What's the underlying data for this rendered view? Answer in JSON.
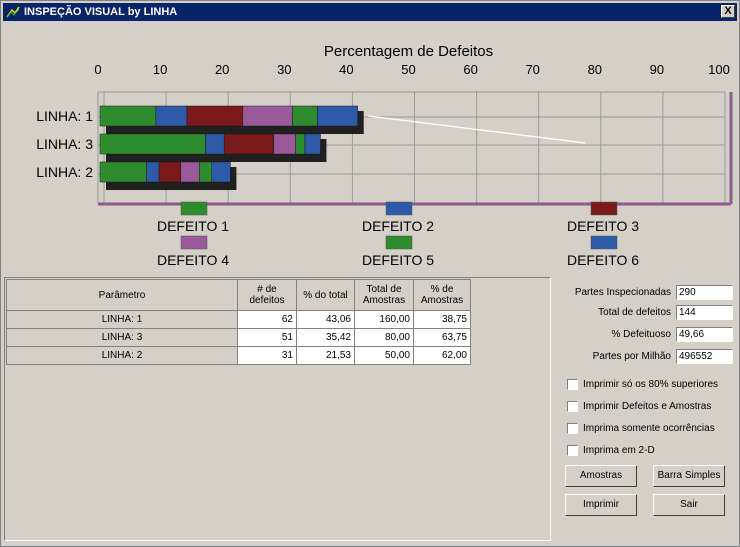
{
  "window": {
    "title": "INSPEÇÃO VISUAL by LINHA",
    "close_label": "X"
  },
  "chart_data": {
    "type": "bar",
    "orientation": "horizontal",
    "stacked": true,
    "title": "Percentagem de Defeitos",
    "xlim": [
      0,
      100
    ],
    "xticks": [
      0,
      10,
      20,
      30,
      40,
      50,
      60,
      70,
      80,
      90,
      100
    ],
    "categories": [
      "LINHA: 1",
      "LINHA: 3",
      "LINHA: 2"
    ],
    "series": [
      {
        "name": "DEFEITO 1",
        "color": "#2e8b2e",
        "values": [
          9,
          17,
          7.5
        ]
      },
      {
        "name": "DEFEITO 2",
        "color": "#2f5aa8",
        "values": [
          5,
          3,
          2
        ]
      },
      {
        "name": "DEFEITO 3",
        "color": "#7a1a1a",
        "values": [
          9,
          8,
          3.5
        ]
      },
      {
        "name": "DEFEITO 4",
        "color": "#9a5a9a",
        "values": [
          8,
          3.5,
          3
        ]
      },
      {
        "name": "DEFEITO 5",
        "color": "#2e8b2e",
        "values": [
          4,
          1.5,
          2
        ]
      },
      {
        "name": "DEFEITO 6",
        "color": "#2f5aa8",
        "values": [
          6.5,
          2.5,
          3
        ]
      }
    ],
    "grid": true,
    "legend_position": "bottom"
  },
  "table": {
    "headers": [
      "Parâmetro",
      "# de defeitos",
      "% do total",
      "Total de Amostras",
      "% de Amostras"
    ],
    "rows": [
      [
        "LINHA: 1",
        "62",
        "43,06",
        "160,00",
        "38,75"
      ],
      [
        "LINHA: 3",
        "51",
        "35,42",
        "80,00",
        "63,75"
      ],
      [
        "LINHA: 2",
        "31",
        "21,53",
        "50,00",
        "62,00"
      ]
    ]
  },
  "stats": {
    "partes_label": "Partes Inspecionadas",
    "partes_value": "290",
    "total_label": "Total de defeitos",
    "total_value": "144",
    "pct_label": "% Defeituoso",
    "pct_value": "49,66",
    "ppm_label": "Partes por Milhão",
    "ppm_value": "496552"
  },
  "options": {
    "opt1": "Imprimir só os 80% superiores",
    "opt2": "Imprimir Defeitos e Amostras",
    "opt3": "Imprima somente ocorrências",
    "opt4": "Imprima em 2-D"
  },
  "buttons": {
    "amostras": "Amostras",
    "barra_simples": "Barra Simples",
    "imprimir": "Imprimir",
    "sair": "Sair"
  }
}
